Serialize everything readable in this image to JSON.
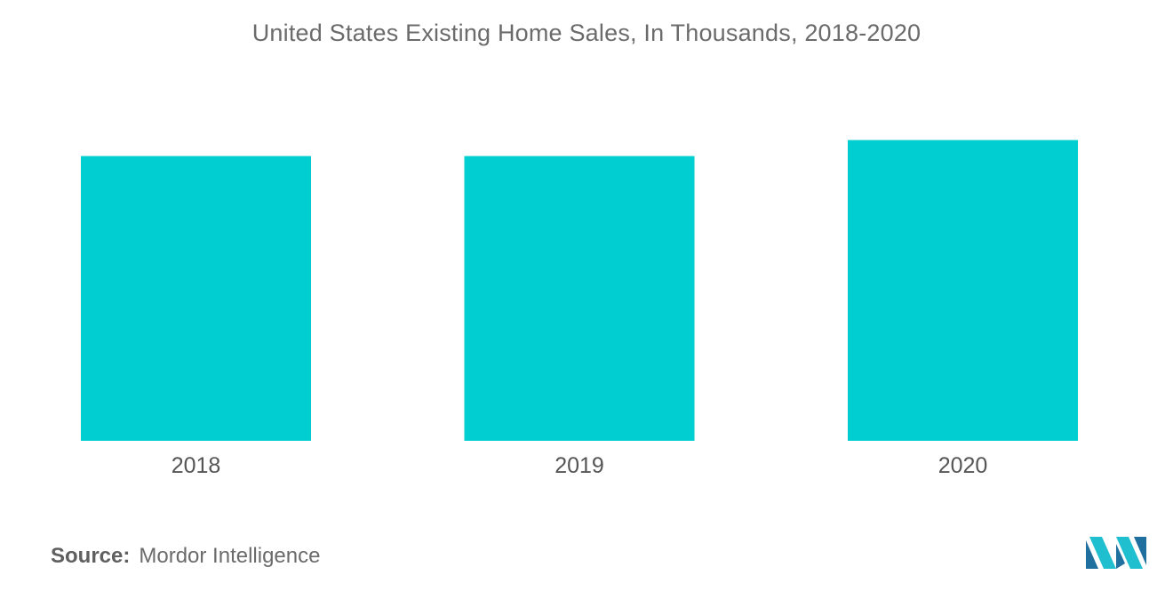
{
  "chart_data": {
    "type": "bar",
    "title": "United States Existing Home Sales, In Thousands, 2018-2020",
    "categories": [
      "2018",
      "2019",
      "2020"
    ],
    "values": [
      5340,
      5340,
      5640
    ],
    "xlabel": "",
    "ylabel": "",
    "ylim": [
      0,
      7000
    ],
    "grid": false,
    "legend": "none",
    "bar_color": "#00CED1"
  },
  "source": {
    "label": "Source:",
    "text": "Mordor Intelligence"
  },
  "logo": {
    "icon": "mordor-intelligence-logo-icon",
    "colors": [
      "#1f6f9f",
      "#1fbfd0"
    ]
  }
}
